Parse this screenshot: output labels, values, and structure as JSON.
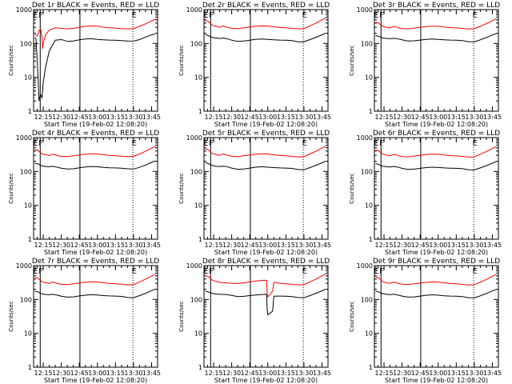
{
  "chart_data": {
    "type": "line",
    "y_scale": "log",
    "ylim": [
      1,
      1000
    ],
    "y_ticks": [
      "1",
      "10",
      "100",
      "1000"
    ],
    "ylabel": "Counts/sec",
    "xlabel": "Start Time (19-Feb-02 12:08:20)",
    "x_ticks": [
      "12:15",
      "12:30",
      "12:45",
      "13:00",
      "13:15",
      "13:30",
      "13:45"
    ],
    "x_tick_min": [
      15,
      30,
      45,
      60,
      75,
      90,
      105
    ],
    "xlim_min": [
      7,
      110
    ],
    "vlines": [
      {
        "min": 12.5,
        "style": "solid"
      },
      {
        "min": 45.5,
        "style": "solid"
      },
      {
        "min": 89.5,
        "style": "dotted"
      }
    ],
    "markers": [
      {
        "label": "E",
        "min": 8.5
      },
      {
        "label": "F",
        "min": 13.0
      },
      {
        "label": "E",
        "min": 90.5
      }
    ],
    "legend_text": "BLACK = Events, RED = LLD",
    "colors": {
      "events": "#000000",
      "lld": "#ff0000"
    },
    "panels": [
      {
        "title": "Det 1r BLACK = Events, RED = LLD",
        "x": [
          8,
          9,
          10,
          11,
          11.5,
          12,
          13,
          14,
          14.5,
          15,
          17,
          20,
          25,
          30,
          32,
          35,
          40,
          45,
          50,
          55,
          60,
          65,
          70,
          75,
          80,
          85,
          90,
          95,
          100,
          105,
          108
        ],
        "series": [
          {
            "name": "BLACK = Events",
            "values": [
              150,
              140,
              30,
              6,
              2,
              2.5,
              3,
              2.5,
              4,
              7,
              20,
              60,
              125,
              130,
              125,
              115,
              118,
              128,
              136,
              138,
              132,
              128,
              126,
              125,
              122,
              118,
              117,
              130,
              155,
              180,
              190
            ]
          },
          {
            "name": "RED = LLD",
            "values": [
              180,
              175,
              165,
              210,
              240,
              250,
              255,
              160,
              70,
              100,
              180,
              250,
              290,
              280,
              275,
              270,
              280,
              300,
              320,
              330,
              325,
              300,
              290,
              285,
              275,
              270,
              275,
              320,
              380,
              460,
              520
            ]
          }
        ]
      },
      {
        "title": "Det 2r BLACK = Events, RED = LLD",
        "x": [
          8,
          10,
          12,
          14,
          17,
          20,
          23,
          25,
          27,
          30,
          35,
          40,
          45,
          50,
          55,
          60,
          65,
          70,
          75,
          80,
          85,
          90,
          95,
          100,
          105,
          108
        ],
        "series": [
          {
            "name": "BLACK = Events",
            "values": [
              180,
              175,
              160,
              150,
              145,
              140,
              145,
              140,
              135,
              125,
              115,
              118,
              125,
              133,
              136,
              132,
              128,
              126,
              125,
              122,
              112,
              112,
              130,
              152,
              180,
              200
            ]
          },
          {
            "name": "RED = LLD",
            "values": [
              470,
              460,
              400,
              340,
              320,
              300,
              330,
              310,
              295,
              280,
              275,
              290,
              305,
              322,
              330,
              328,
              310,
              295,
              290,
              280,
              270,
              275,
              330,
              400,
              500,
              560
            ]
          }
        ]
      },
      {
        "title": "Det 3r BLACK = Events, RED = LLD",
        "x": [
          8,
          10,
          12,
          14,
          17,
          20,
          23,
          25,
          27,
          30,
          35,
          40,
          45,
          50,
          55,
          60,
          65,
          70,
          75,
          80,
          85,
          90,
          95,
          100,
          105,
          108
        ],
        "series": [
          {
            "name": "BLACK = Events",
            "values": [
              170,
              165,
              155,
              145,
              140,
              138,
              142,
              140,
              135,
              128,
              118,
              120,
              126,
              132,
              135,
              132,
              128,
              126,
              125,
              122,
              113,
              112,
              128,
              150,
              178,
              195
            ]
          },
          {
            "name": "RED = LLD",
            "values": [
              420,
              410,
              360,
              320,
              300,
              290,
              320,
              305,
              290,
              275,
              270,
              285,
              300,
              315,
              325,
              322,
              305,
              292,
              288,
              278,
              268,
              272,
              320,
              385,
              470,
              530
            ]
          }
        ]
      },
      {
        "title": "Det 4r BLACK = Events, RED = LLD",
        "x": [
          8,
          10,
          12,
          14,
          17,
          20,
          23,
          25,
          27,
          30,
          35,
          40,
          45,
          50,
          55,
          60,
          65,
          70,
          75,
          80,
          85,
          90,
          95,
          100,
          105,
          108
        ],
        "series": [
          {
            "name": "BLACK = Events",
            "values": [
              175,
              170,
              160,
              145,
              140,
              138,
              142,
              138,
              132,
              125,
              118,
              120,
              128,
              135,
              140,
              138,
              132,
              128,
              127,
              125,
              120,
              118,
              132,
              155,
              185,
              205
            ]
          },
          {
            "name": "RED = LLD",
            "values": [
              440,
              430,
              380,
              330,
              310,
              295,
              325,
              310,
              292,
              280,
              275,
              290,
              308,
              325,
              335,
              330,
              312,
              298,
              292,
              282,
              272,
              278,
              328,
              395,
              490,
              550
            ]
          }
        ]
      },
      {
        "title": "Det 5r BLACK = Events, RED = LLD",
        "x": [
          8,
          10,
          12,
          14,
          17,
          20,
          23,
          25,
          27,
          30,
          35,
          40,
          45,
          50,
          55,
          60,
          65,
          70,
          75,
          80,
          85,
          90,
          95,
          100,
          105,
          108
        ],
        "series": [
          {
            "name": "BLACK = Events",
            "values": [
              180,
              175,
              160,
              150,
              142,
              140,
              143,
              140,
              135,
              126,
              116,
              118,
              126,
              134,
              138,
              134,
              130,
              127,
              126,
              123,
              114,
              113,
              130,
              152,
              180,
              200
            ]
          },
          {
            "name": "RED = LLD",
            "values": [
              460,
              450,
              390,
              335,
              315,
              300,
              330,
              312,
              296,
              282,
              276,
              292,
              306,
              322,
              332,
              328,
              310,
              296,
              290,
              280,
              268,
              274,
              328,
              398,
              495,
              555
            ]
          }
        ]
      },
      {
        "title": "Det 6r BLACK = Events, RED = LLD",
        "x": [
          8,
          10,
          12,
          14,
          17,
          20,
          23,
          25,
          27,
          30,
          35,
          40,
          45,
          50,
          55,
          60,
          65,
          70,
          75,
          80,
          85,
          90,
          95,
          100,
          105,
          108
        ],
        "series": [
          {
            "name": "BLACK = Events",
            "values": [
              170,
              165,
              152,
              142,
              138,
              136,
              140,
              137,
              132,
              124,
              115,
              117,
              124,
              130,
              134,
              131,
              127,
              125,
              124,
              121,
              112,
              111,
              127,
              148,
              176,
              195
            ]
          },
          {
            "name": "RED = LLD",
            "values": [
              430,
              420,
              370,
              325,
              305,
              292,
              322,
              306,
              290,
              276,
              270,
              286,
              300,
              316,
              326,
              322,
              306,
              292,
              288,
              278,
              266,
              270,
              322,
              388,
              478,
              540
            ]
          }
        ]
      },
      {
        "title": "Det 7r BLACK = Events, RED = LLD",
        "x": [
          8,
          10,
          12,
          14,
          17,
          20,
          23,
          25,
          27,
          30,
          35,
          40,
          45,
          50,
          55,
          60,
          65,
          70,
          75,
          80,
          85,
          90,
          95,
          100,
          105,
          108
        ],
        "series": [
          {
            "name": "BLACK = Events",
            "values": [
              175,
              170,
              158,
              146,
              140,
              138,
              142,
              138,
              133,
              125,
              117,
              119,
              127,
              134,
              138,
              135,
              130,
              127,
              126,
              123,
              114,
              113,
              130,
              152,
              182,
              202
            ]
          },
          {
            "name": "RED = LLD",
            "values": [
              450,
              440,
              385,
              332,
              312,
              298,
              328,
              310,
              294,
              280,
              275,
              290,
              306,
              322,
              333,
              329,
              311,
              297,
              291,
              281,
              270,
              276,
              330,
              398,
              495,
              555
            ]
          }
        ]
      },
      {
        "title": "Det 8r BLACK = Events, RED = LLD",
        "x": [
          8,
          10,
          12,
          14,
          17,
          20,
          25,
          30,
          35,
          40,
          45,
          50,
          55,
          58,
          59,
          59.5,
          60,
          62,
          64,
          65,
          68,
          70,
          75,
          80,
          85,
          90,
          95,
          100,
          105,
          108
        ],
        "series": [
          {
            "name": "BLACK = Events",
            "values": [
              175,
              170,
              160,
              150,
              145,
              142,
              140,
              132,
              122,
              124,
              130,
              136,
              140,
              142,
              140,
              50,
              35,
              40,
              45,
              125,
              126,
              126,
              125,
              122,
              114,
              113,
              130,
              152,
              180,
              200
            ]
          },
          {
            "name": "RED = LLD",
            "values": [
              500,
              490,
              430,
              370,
              340,
              320,
              310,
              300,
              295,
              310,
              330,
              350,
              365,
              370,
              360,
              150,
              120,
              140,
              180,
              320,
              310,
              300,
              290,
              280,
              270,
              275,
              330,
              400,
              500,
              560
            ]
          }
        ]
      },
      {
        "title": "Det 9r BLACK = Events, RED = LLD",
        "x": [
          8,
          10,
          12,
          14,
          17,
          20,
          23,
          25,
          27,
          30,
          35,
          40,
          45,
          50,
          55,
          60,
          65,
          70,
          75,
          80,
          85,
          90,
          95,
          100,
          105,
          108
        ],
        "series": [
          {
            "name": "BLACK = Events",
            "values": [
              175,
              170,
              158,
              148,
              142,
              139,
              143,
              139,
              134,
              126,
              117,
              119,
              126,
              133,
              137,
              134,
              129,
              126,
              125,
              122,
              113,
              112,
              128,
              150,
              178,
              198
            ]
          },
          {
            "name": "RED = LLD",
            "values": [
              455,
              445,
              388,
              334,
              313,
              299,
              329,
              311,
              295,
              281,
              276,
              291,
              305,
              320,
              330,
              326,
              309,
              295,
              289,
              279,
              268,
              273,
              325,
              392,
              485,
              548
            ]
          }
        ]
      }
    ]
  }
}
